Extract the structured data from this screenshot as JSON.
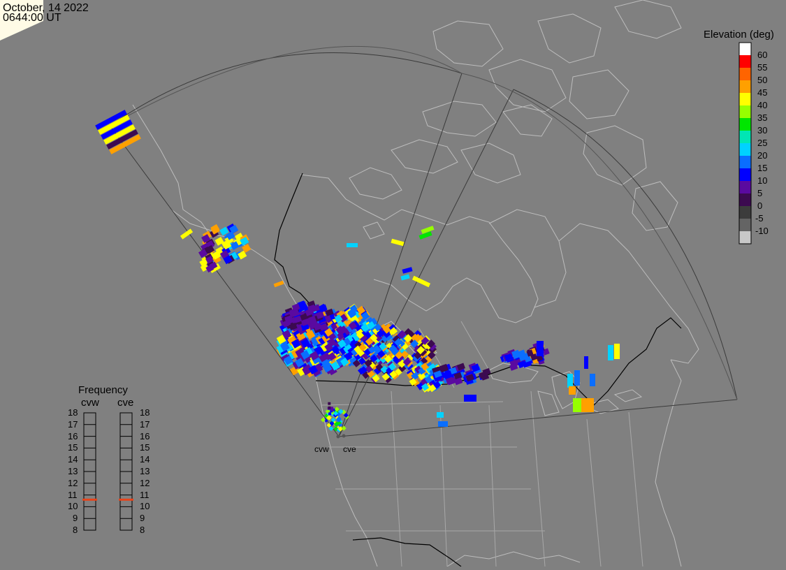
{
  "header": {
    "date": "October, 14 2022",
    "time": "0644:00 UT"
  },
  "colors": {
    "background": "#808080",
    "map_lines": "#bdbdbd",
    "border_lines": "#000000",
    "fov_lines": "#3a3a3a",
    "frequency_marker": "#e8431a"
  },
  "elevation_legend": {
    "title": "Elevation (deg)",
    "ticks": [
      "60",
      "55",
      "50",
      "45",
      "40",
      "35",
      "30",
      "25",
      "20",
      "15",
      "10",
      "5",
      "0",
      "-5",
      "-10"
    ],
    "bins": [
      {
        "color": "#ffffff"
      },
      {
        "color": "#ff0000"
      },
      {
        "color": "#ff6400"
      },
      {
        "color": "#ffa000"
      },
      {
        "color": "#ffff00"
      },
      {
        "color": "#96ff00"
      },
      {
        "color": "#00e600"
      },
      {
        "color": "#00e6b4"
      },
      {
        "color": "#00d2ff"
      },
      {
        "color": "#0a6eff"
      },
      {
        "color": "#0000ff"
      },
      {
        "color": "#5a0aa0"
      },
      {
        "color": "#3c0a50"
      },
      {
        "color": "#3c3c3c"
      },
      {
        "color": "#646464"
      },
      {
        "color": "#c8c8c8"
      }
    ]
  },
  "frequency_panel": {
    "title": "Frequency",
    "radars": [
      {
        "code": "cvw",
        "frequency_mhz": 10.6
      },
      {
        "code": "cve",
        "frequency_mhz": 10.6
      }
    ],
    "ticks": [
      "18",
      "17",
      "16",
      "15",
      "14",
      "13",
      "12",
      "11",
      "10",
      "9",
      "8"
    ]
  },
  "radars": [
    {
      "code": "cvw"
    },
    {
      "code": "cve"
    }
  ]
}
